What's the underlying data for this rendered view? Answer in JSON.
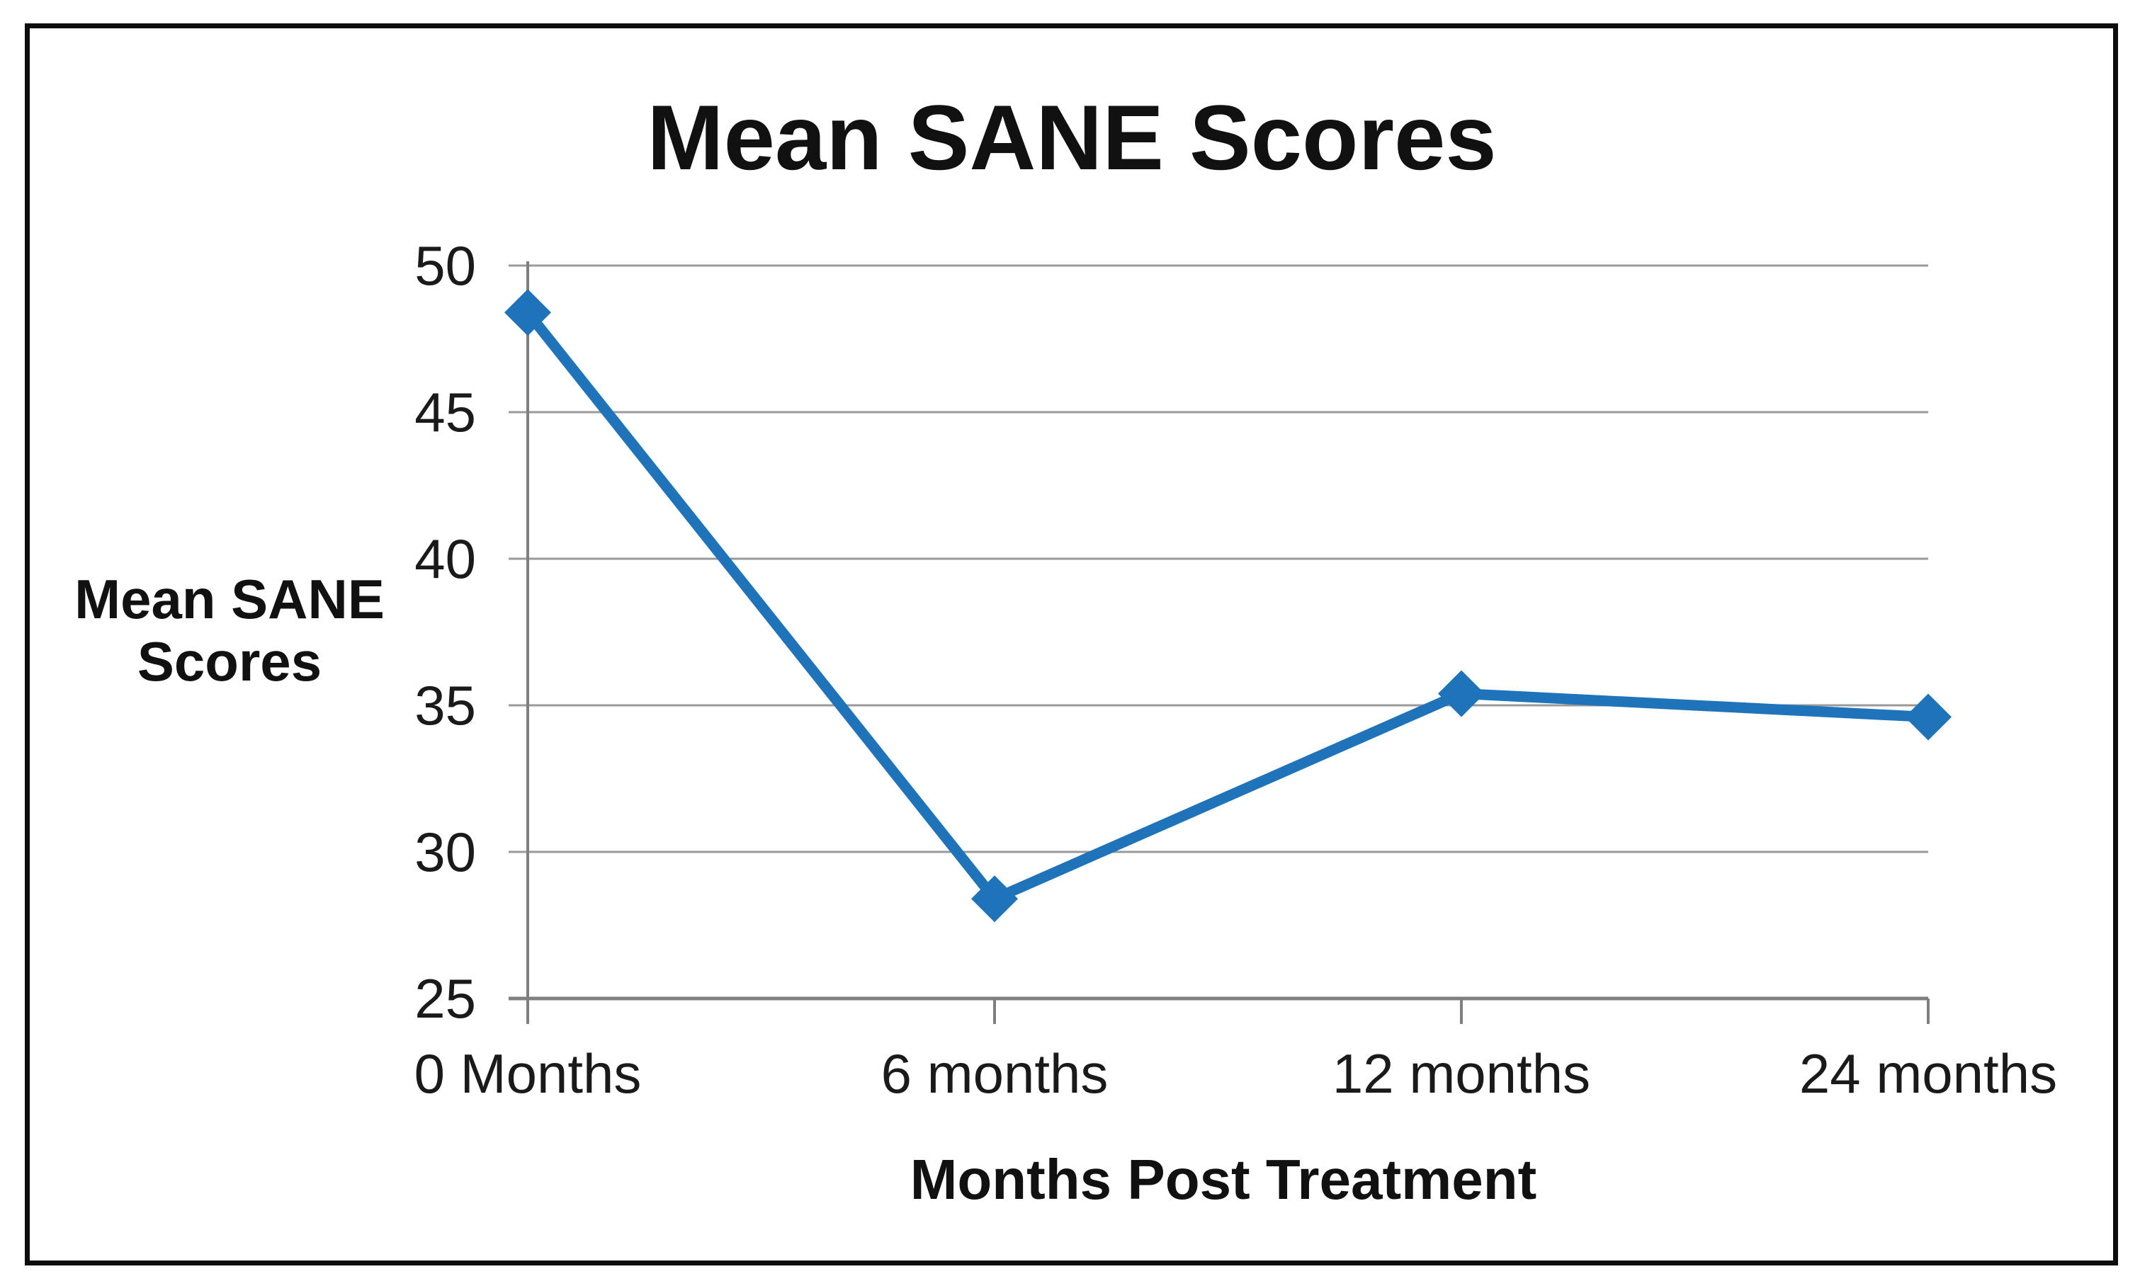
{
  "figure": {
    "background": "#ffffff",
    "border_color": "#0d0d0d"
  },
  "chart_data": {
    "type": "line",
    "title": "Mean SANE Scores",
    "xlabel": "Months Post Treatment",
    "ylabel": "Mean SANE Scores",
    "ylabel_lines": [
      "Mean SANE",
      "Scores"
    ],
    "categories": [
      "0 Months",
      "6 months",
      "12 months",
      "24 months"
    ],
    "series": [
      {
        "name": "Mean SANE Scores",
        "values": [
          48.4,
          28.4,
          35.4,
          34.6
        ],
        "color": "#1f73b9",
        "marker": "diamond"
      }
    ],
    "yticks": [
      25,
      30,
      35,
      40,
      45,
      50
    ],
    "ylim": [
      25,
      50
    ],
    "grid": "horizontal",
    "legend": "none",
    "colors": {
      "line": "#1f73b9",
      "gridline": "#9a9a9a",
      "axis": "#7f7f7f",
      "text": "#1a1a1a"
    }
  }
}
